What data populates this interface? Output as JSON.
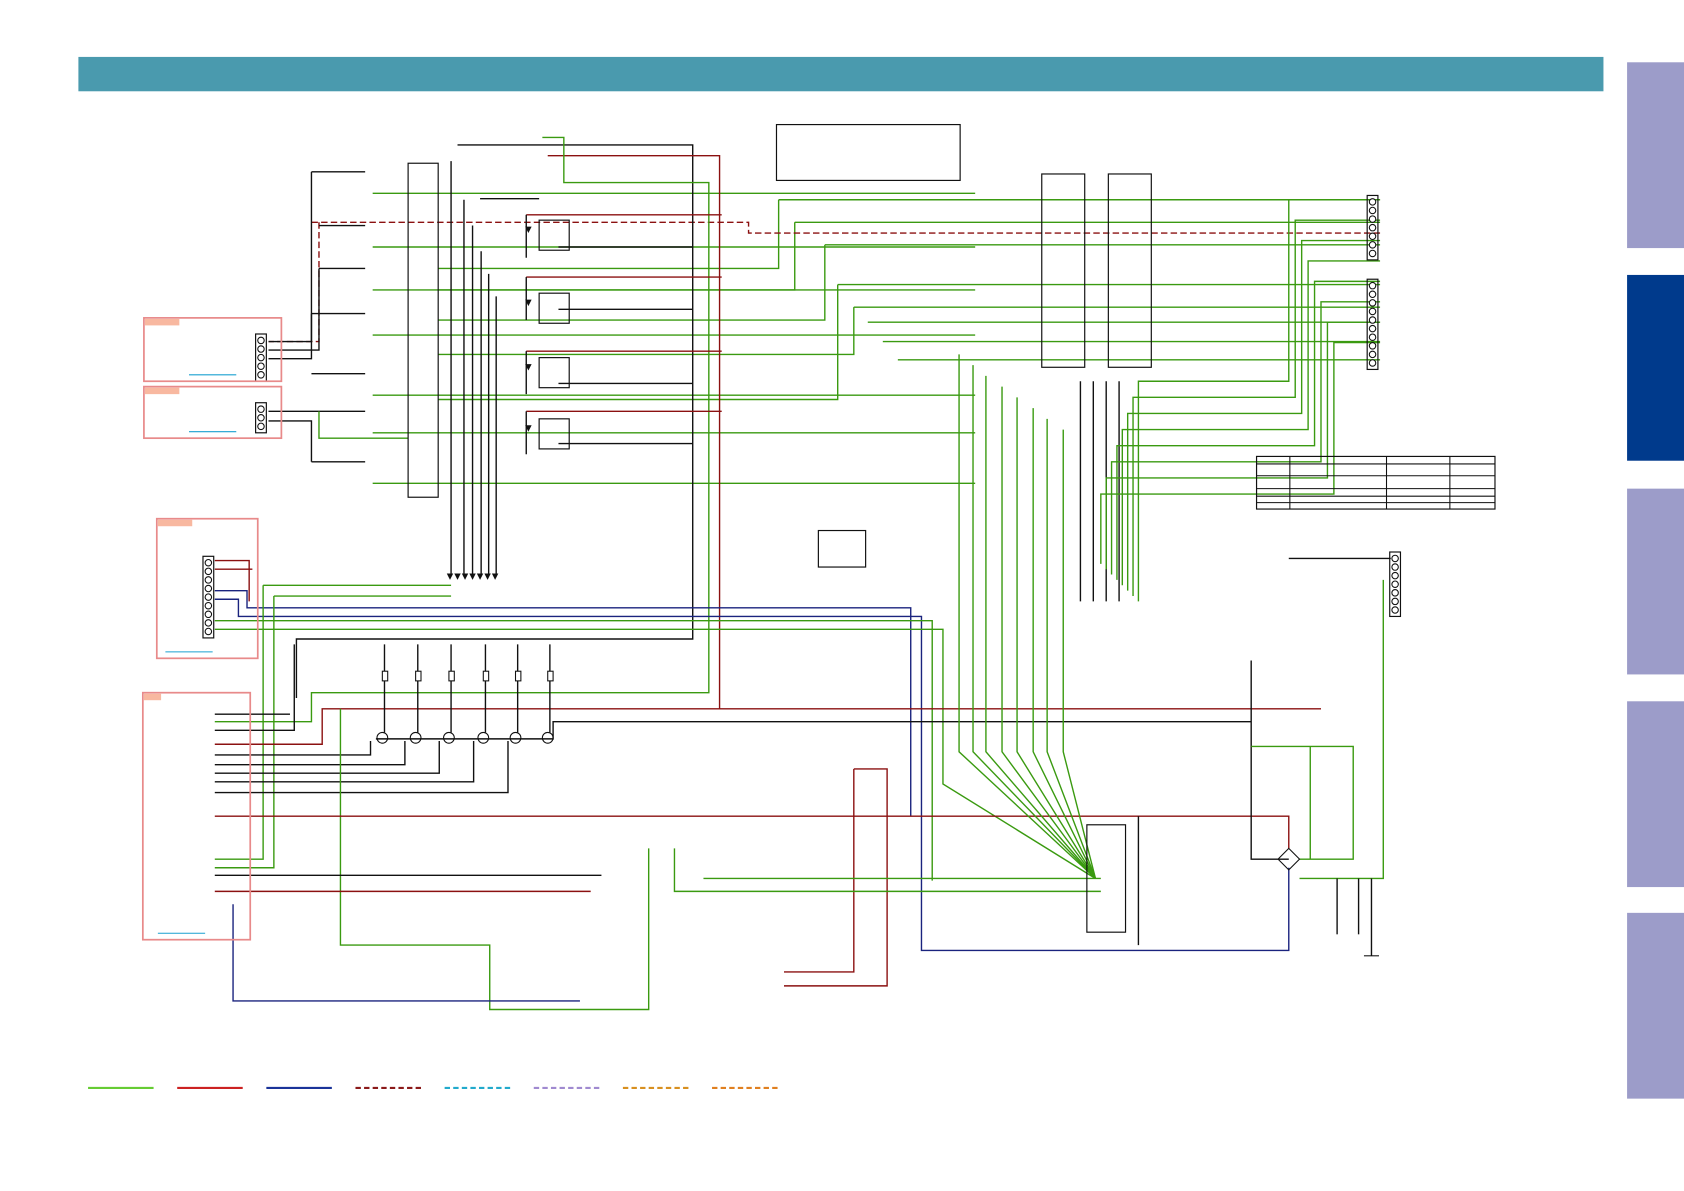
{
  "header": {
    "color": "#4a9aae"
  },
  "side_tabs": [
    {
      "id": "tab-1",
      "active": false
    },
    {
      "id": "tab-2",
      "active": true
    },
    {
      "id": "tab-3",
      "active": false
    },
    {
      "id": "tab-4",
      "active": false
    },
    {
      "id": "tab-5",
      "active": false
    }
  ],
  "colors": {
    "tab_inactive": "#9c9cc9",
    "tab_active": "#003a8c",
    "wire_green": "#3a9a10",
    "wire_red": "#8b1010",
    "wire_blue": "#1a237e",
    "wire_black": "#111111",
    "board_outline": "#e88a8a",
    "board_label": "#f8b8a0",
    "link_cyan": "#1aa0d0"
  },
  "legend": [
    {
      "color": "#66cc33",
      "style": "solid"
    },
    {
      "color": "#cc2222",
      "style": "solid"
    },
    {
      "color": "#1a3399",
      "style": "solid"
    },
    {
      "color": "#8b1a1a",
      "style": "dashed"
    },
    {
      "color": "#22aacc",
      "style": "dashed"
    },
    {
      "color": "#a08ad0",
      "style": "dashed"
    },
    {
      "color": "#d89020",
      "style": "dashed"
    },
    {
      "color": "#e08020",
      "style": "dashed"
    }
  ]
}
